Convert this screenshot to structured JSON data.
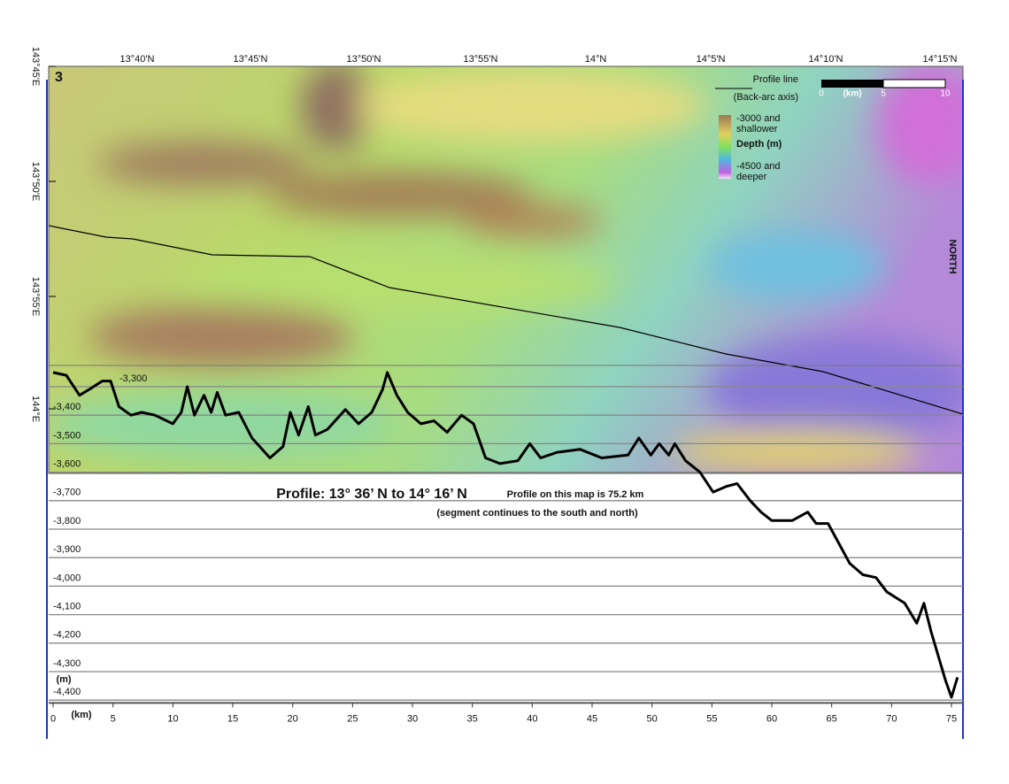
{
  "panel_label": "3",
  "map": {
    "top_labels": [
      "13°40'N",
      "13°45'N",
      "13°50'N",
      "13°55'N",
      "14°N",
      "14°5'N",
      "14°10'N",
      "14°15'N"
    ],
    "left_labels": [
      "143°45'E",
      "143°50'E",
      "143°55'E",
      "144°E"
    ],
    "north": "NORTH"
  },
  "legend": {
    "line_title": "Profile line",
    "line_subtitle": "(Back-arc axis)",
    "top_1": "-3000 and",
    "top_2": "shallower",
    "middle": "Depth (m)",
    "bottom_1": "-4500 and",
    "bottom_2": "deeper"
  },
  "scale_bar": {
    "ticks": [
      0,
      5,
      10
    ],
    "unit": "(km)"
  },
  "profile": {
    "type": "line",
    "title": "Profile:  13° 36’ N to 14° 16’ N",
    "note": "Profile on this map is 75.2 km",
    "subnote": "(segment continues to the south and north)",
    "x_label": "(km)",
    "y_label": "(m)",
    "xlim": [
      0,
      75.5
    ],
    "ylim": [
      -4410,
      -3230
    ],
    "xticks": [
      0,
      5,
      10,
      15,
      20,
      25,
      30,
      35,
      40,
      45,
      50,
      55,
      60,
      65,
      70,
      75
    ],
    "yticks": [
      {
        "value": -3300,
        "label": "-3,300"
      },
      {
        "value": -3400,
        "label": "-3,400"
      },
      {
        "value": -3500,
        "label": "-3,500"
      },
      {
        "value": -3600,
        "label": "-3,600"
      },
      {
        "value": -3700,
        "label": "-3,700"
      },
      {
        "value": -3800,
        "label": "-3,800"
      },
      {
        "value": -3900,
        "label": "-3,900"
      },
      {
        "value": -4000,
        "label": "-4,000"
      },
      {
        "value": -4100,
        "label": "-4,100"
      },
      {
        "value": -4200,
        "label": "-4,200"
      },
      {
        "value": -4300,
        "label": "-4,300"
      },
      {
        "value": -4400,
        "label": "-4,400"
      }
    ],
    "x": [
      0,
      1.1,
      2.2,
      3,
      4.1,
      4.8,
      5.5,
      6.5,
      7.4,
      8.5,
      10,
      10.7,
      11.2,
      11.8,
      12.6,
      13.2,
      13.7,
      14.4,
      15.5,
      16.6,
      18.1,
      19.2,
      19.8,
      20.5,
      21.3,
      21.9,
      22.9,
      24.4,
      25.5,
      26.6,
      27.5,
      27.9,
      28.7,
      29.6,
      30.7,
      31.8,
      32.9,
      34.1,
      35.1,
      36.1,
      37.3,
      38.8,
      39.8,
      40.7,
      42.1,
      44,
      45.8,
      48,
      48.9,
      49.9,
      50.6,
      51.4,
      51.9,
      52.8,
      54,
      55.1,
      56.2,
      57.1,
      58.2,
      59.1,
      60,
      61.7,
      63,
      63.7,
      64.7,
      65.6,
      66.5,
      67.6,
      68.7,
      69.6,
      71.1,
      72.1,
      72.7,
      73.3,
      74.5,
      75,
      75.5
    ],
    "values": [
      -3250,
      -3260,
      -3330,
      -3310,
      -3280,
      -3280,
      -3370,
      -3400,
      -3390,
      -3400,
      -3430,
      -3390,
      -3300,
      -3400,
      -3330,
      -3390,
      -3320,
      -3400,
      -3390,
      -3480,
      -3550,
      -3510,
      -3390,
      -3470,
      -3370,
      -3470,
      -3450,
      -3380,
      -3430,
      -3390,
      -3310,
      -3250,
      -3330,
      -3390,
      -3430,
      -3420,
      -3460,
      -3400,
      -3430,
      -3550,
      -3570,
      -3560,
      -3500,
      -3550,
      -3530,
      -3520,
      -3550,
      -3540,
      -3480,
      -3540,
      -3500,
      -3540,
      -3500,
      -3560,
      -3600,
      -3670,
      -3650,
      -3640,
      -3700,
      -3740,
      -3770,
      -3770,
      -3740,
      -3780,
      -3780,
      -3850,
      -3920,
      -3960,
      -3970,
      -4020,
      -4060,
      -4130,
      -4060,
      -4160,
      -4330,
      -4390,
      -4320
    ]
  }
}
